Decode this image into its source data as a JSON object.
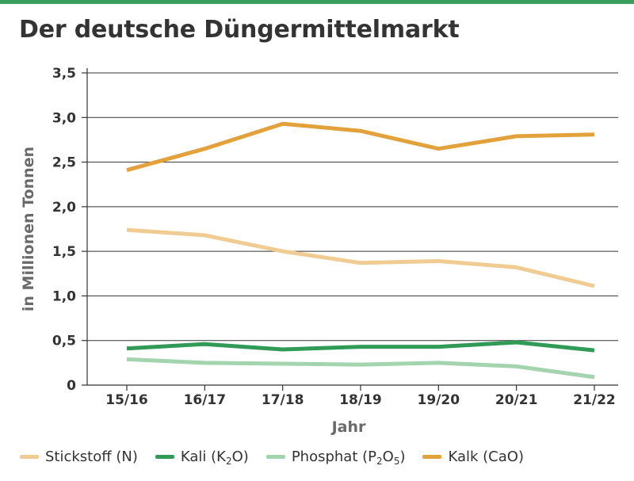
{
  "title": "Der deutsche Düngermittelmarkt",
  "colors": {
    "accent_bar": "#3a9f5e",
    "axis": "#333333",
    "grid": "#333333",
    "text": "#333333"
  },
  "chart_data": {
    "type": "line",
    "title": "Der deutsche Düngermittelmarkt",
    "xlabel": "Jahr",
    "ylabel": "in Millionen Tonnen",
    "categories": [
      "15/16",
      "16/17",
      "17/18",
      "18/19",
      "19/20",
      "20/21",
      "21/22"
    ],
    "y_ticks": [
      0,
      0.5,
      1.0,
      1.5,
      2.0,
      2.5,
      3.0,
      3.5
    ],
    "y_tick_labels": [
      "0",
      "0,5",
      "1,0",
      "1,5",
      "2,0",
      "2,5",
      "3,0",
      "3,5"
    ],
    "ylim": [
      0,
      3.5
    ],
    "grid": true,
    "legend_position": "bottom",
    "series": [
      {
        "name": "Stickstoff (N)",
        "legend_html": "Stickstoff (N)",
        "color": "#f0cc93",
        "values": [
          1.74,
          1.68,
          1.5,
          1.37,
          1.39,
          1.32,
          1.11
        ]
      },
      {
        "name": "Kali (K2O)",
        "legend_html": "Kali (K<sub>2</sub>O)",
        "color": "#2f9b56",
        "values": [
          0.41,
          0.46,
          0.4,
          0.43,
          0.43,
          0.48,
          0.39
        ]
      },
      {
        "name": "Phosphat (P2O5)",
        "legend_html": "Phosphat (P<sub>2</sub>O<sub>5</sub>)",
        "color": "#a3d4ad",
        "values": [
          0.29,
          0.25,
          0.24,
          0.23,
          0.25,
          0.21,
          0.09
        ]
      },
      {
        "name": "Kalk (CaO)",
        "legend_html": "Kalk (CaO)",
        "color": "#e3a13c",
        "values": [
          2.41,
          2.65,
          2.93,
          2.85,
          2.65,
          2.79,
          2.81
        ]
      }
    ]
  }
}
